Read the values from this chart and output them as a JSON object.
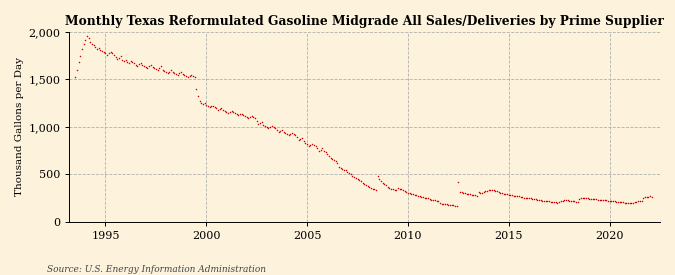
{
  "title": "Monthly Texas Reformulated Gasoline Midgrade All Sales/Deliveries by Prime Supplier",
  "ylabel": "Thousand Gallons per Day",
  "source": "Source: U.S. Energy Information Administration",
  "background_color": "#fdf3dc",
  "plot_bg_color": "#fdf3dc",
  "marker_color": "#cc0000",
  "ylim": [
    0,
    2000
  ],
  "yticks": [
    0,
    500,
    1000,
    1500,
    2000
  ],
  "ytick_labels": [
    "0",
    "500",
    "1,000",
    "1,500",
    "2,000"
  ],
  "start_year_decimal": 1993.5,
  "xticks": [
    1995,
    2000,
    2005,
    2010,
    2015,
    2020
  ],
  "xlim": [
    1993.2,
    2022.5
  ],
  "data_points": [
    1520,
    1600,
    1680,
    1750,
    1820,
    1870,
    1920,
    1960,
    1940,
    1890,
    1870,
    1860,
    1840,
    1820,
    1830,
    1810,
    1800,
    1790,
    1780,
    1760,
    1780,
    1790,
    1780,
    1760,
    1740,
    1720,
    1730,
    1750,
    1700,
    1690,
    1700,
    1680,
    1670,
    1690,
    1680,
    1670,
    1650,
    1640,
    1660,
    1670,
    1650,
    1640,
    1630,
    1620,
    1640,
    1650,
    1630,
    1620,
    1610,
    1600,
    1620,
    1640,
    1600,
    1590,
    1580,
    1570,
    1580,
    1600,
    1580,
    1570,
    1560,
    1550,
    1570,
    1580,
    1560,
    1550,
    1540,
    1530,
    1540,
    1550,
    1540,
    1530,
    1400,
    1320,
    1270,
    1250,
    1240,
    1250,
    1230,
    1220,
    1210,
    1220,
    1220,
    1210,
    1200,
    1180,
    1190,
    1200,
    1180,
    1170,
    1160,
    1150,
    1160,
    1170,
    1160,
    1150,
    1140,
    1120,
    1130,
    1140,
    1120,
    1110,
    1100,
    1090,
    1100,
    1110,
    1100,
    1090,
    1060,
    1030,
    1040,
    1050,
    1020,
    1010,
    1000,
    990,
    1000,
    1010,
    1000,
    990,
    970,
    950,
    960,
    970,
    950,
    930,
    920,
    910,
    920,
    930,
    920,
    910,
    890,
    860,
    870,
    880,
    850,
    830,
    820,
    800,
    810,
    820,
    810,
    800,
    780,
    750,
    760,
    780,
    750,
    730,
    710,
    690,
    670,
    660,
    650,
    640,
    620,
    580,
    570,
    560,
    550,
    540,
    520,
    510,
    500,
    480,
    470,
    460,
    450,
    440,
    430,
    410,
    400,
    390,
    380,
    370,
    360,
    350,
    340,
    335,
    480,
    450,
    430,
    410,
    395,
    385,
    370,
    360,
    350,
    345,
    335,
    330,
    360,
    350,
    340,
    330,
    325,
    315,
    305,
    305,
    295,
    290,
    282,
    278,
    275,
    268,
    265,
    258,
    255,
    248,
    245,
    238,
    234,
    228,
    224,
    218,
    215,
    198,
    192,
    188,
    187,
    182,
    180,
    178,
    174,
    172,
    169,
    165,
    420,
    315,
    308,
    302,
    298,
    295,
    290,
    287,
    285,
    281,
    277,
    274,
    308,
    305,
    302,
    312,
    322,
    327,
    332,
    336,
    336,
    331,
    326,
    321,
    312,
    307,
    302,
    297,
    292,
    287,
    282,
    281,
    277,
    276,
    271,
    271,
    269,
    264,
    260,
    255,
    254,
    250,
    246,
    245,
    241,
    240,
    236,
    231,
    226,
    225,
    221,
    220,
    216,
    215,
    215,
    211,
    211,
    206,
    205,
    201,
    211,
    215,
    219,
    224,
    225,
    224,
    221,
    218,
    215,
    214,
    212,
    210,
    244,
    247,
    249,
    250,
    248,
    246,
    244,
    242,
    240,
    238,
    236,
    234,
    232,
    230,
    228,
    226,
    224,
    222,
    220,
    218,
    216,
    214,
    212,
    210,
    208,
    206,
    204,
    202,
    200,
    199,
    197,
    199,
    201,
    206,
    211,
    219,
    221,
    223,
    255,
    258,
    262,
    265,
    266,
    265
  ]
}
